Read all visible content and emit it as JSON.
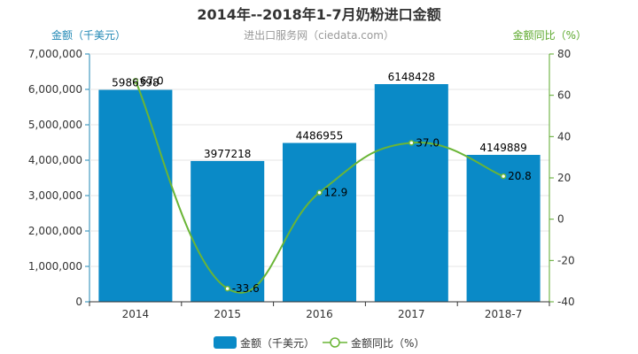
{
  "chart_data": {
    "type": "bar",
    "title": "2014年--2018年1-7月奶粉进口金额",
    "subtitle": "进出口服务网（ciedata.com）",
    "categories": [
      "2014",
      "2015",
      "2016",
      "2017",
      "2018-7"
    ],
    "series": [
      {
        "name": "金额（千美元）",
        "type": "bar",
        "axis": "left",
        "values": [
          5986398,
          3977218,
          4486955,
          6148428,
          4149889
        ],
        "labels": [
          "5986398",
          "3977218",
          "4486955",
          "6148428",
          "4149889"
        ]
      },
      {
        "name": "金额同比（%）",
        "type": "line",
        "axis": "right",
        "values": [
          67.0,
          -33.6,
          12.9,
          37.0,
          20.8
        ],
        "labels": [
          "67.0",
          "-33.6",
          "12.9",
          "37.0",
          "20.8"
        ]
      }
    ],
    "y_left": {
      "label": "金额（千美元）",
      "ylim": [
        0,
        7000000
      ],
      "ticks": [
        0,
        1000000,
        2000000,
        3000000,
        4000000,
        5000000,
        6000000,
        7000000
      ],
      "tick_labels": [
        "0",
        "1,000,000",
        "2,000,000",
        "3,000,000",
        "4,000,000",
        "5,000,000",
        "6,000,000",
        "7,000,000"
      ]
    },
    "y_right": {
      "label": "金额同比（%）",
      "ylim": [
        -40,
        80
      ],
      "ticks": [
        -40,
        -20,
        0,
        20,
        40,
        60,
        80
      ],
      "tick_labels": [
        "-40",
        "-20",
        "0",
        "20",
        "40",
        "60",
        "80"
      ]
    },
    "legend": {
      "position": "bottom",
      "items": [
        "金额（千美元）",
        "金额同比（%）"
      ]
    },
    "colors": {
      "bar": "#0a8ac7",
      "line": "#6ab536",
      "left_axis": "#1f87b4",
      "right_axis": "#5ba82b",
      "title": "#333333"
    }
  }
}
